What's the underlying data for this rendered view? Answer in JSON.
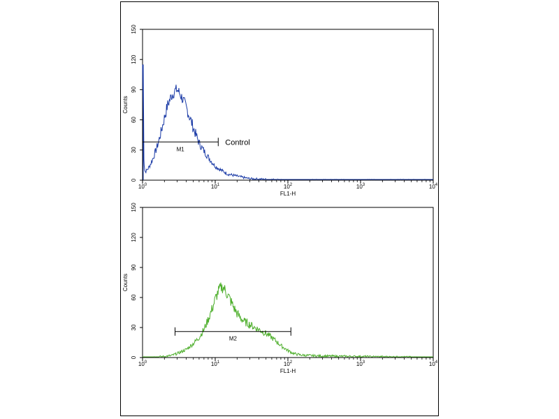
{
  "chart_data": [
    {
      "type": "line",
      "title": "",
      "xlabel": "FL1-H",
      "ylabel": "Counts",
      "xscale": "log",
      "xlim": [
        1,
        10000
      ],
      "ylim": [
        0,
        150
      ],
      "grid": false,
      "yticks": [
        "0",
        "30",
        "60",
        "90",
        "120",
        "150"
      ],
      "xticks": [
        {
          "base": "10",
          "exp": "0",
          "value": 1
        },
        {
          "base": "10",
          "exp": "1",
          "value": 10
        },
        {
          "base": "10",
          "exp": "2",
          "value": 100
        },
        {
          "base": "10",
          "exp": "3",
          "value": 1000
        },
        {
          "base": "10",
          "exp": "4",
          "value": 10000
        }
      ],
      "color": "#1a3aa6",
      "series": [
        {
          "name": "",
          "x": [
            1,
            1.04,
            1.08,
            1.15,
            1.25,
            1.4,
            1.6,
            1.8,
            2.0,
            2.2,
            2.5,
            2.8,
            3.0,
            3.2,
            3.5,
            3.8,
            4.2,
            4.6,
            5.0,
            5.5,
            6.0,
            7.0,
            8.0,
            9.0,
            10,
            12,
            15,
            20,
            25,
            30,
            40,
            60,
            100,
            1000,
            10000
          ],
          "y": [
            115,
            20,
            8,
            10,
            14,
            22,
            34,
            48,
            62,
            74,
            84,
            89,
            90,
            87,
            82,
            76,
            68,
            60,
            52,
            44,
            37,
            29,
            23,
            18,
            14,
            10,
            6,
            4,
            2.5,
            1.5,
            1,
            0.5,
            0.2,
            0,
            0
          ]
        }
      ],
      "gate": {
        "label": "M1",
        "x1": 1,
        "x2": 11,
        "y": 38
      },
      "annotation": "Control"
    },
    {
      "type": "line",
      "title": "",
      "xlabel": "FL1-H",
      "ylabel": "Counts",
      "xscale": "log",
      "xlim": [
        1,
        10000
      ],
      "ylim": [
        0,
        150
      ],
      "grid": false,
      "yticks": [
        "0",
        "30",
        "60",
        "90",
        "120",
        "150"
      ],
      "xticks": [
        {
          "base": "10",
          "exp": "0",
          "value": 1
        },
        {
          "base": "10",
          "exp": "1",
          "value": 10
        },
        {
          "base": "10",
          "exp": "2",
          "value": 100
        },
        {
          "base": "10",
          "exp": "3",
          "value": 1000
        },
        {
          "base": "10",
          "exp": "4",
          "value": 10000
        }
      ],
      "color": "#4cae2a",
      "series": [
        {
          "name": "",
          "x": [
            1,
            1.5,
            2,
            2.5,
            3,
            4,
            5,
            6,
            7,
            8,
            9,
            10,
            11,
            12,
            13,
            14,
            16,
            18,
            20,
            22,
            25,
            30,
            35,
            40,
            50,
            60,
            70,
            80,
            100,
            120,
            150,
            200,
            300,
            1000,
            3000,
            10000
          ],
          "y": [
            0,
            0.5,
            1,
            2,
            4,
            8,
            14,
            20,
            28,
            38,
            48,
            58,
            66,
            70,
            70,
            66,
            58,
            50,
            44,
            40,
            36,
            33,
            30,
            28,
            24,
            20,
            16,
            12,
            7,
            4,
            2.5,
            2,
            1.5,
            1,
            0.5,
            0
          ]
        }
      ],
      "gate": {
        "label": "M2",
        "x1": 2.8,
        "x2": 110,
        "y": 26
      },
      "annotation": ""
    }
  ]
}
